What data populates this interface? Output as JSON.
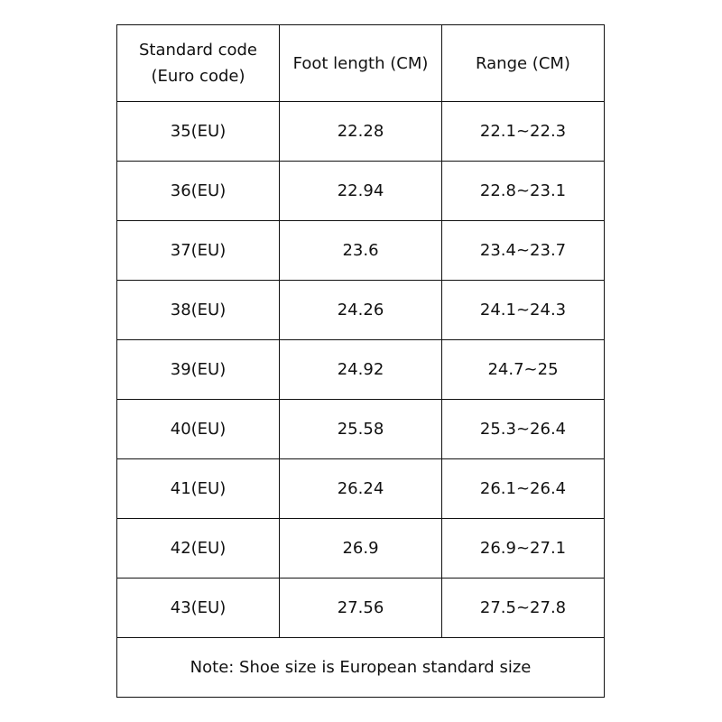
{
  "table": {
    "header": [
      "Standard code (Euro code)",
      "Foot length (CM)",
      "Range (CM)"
    ],
    "rows": [
      [
        "35(EU)",
        "22.28",
        "22.1~22.3"
      ],
      [
        "36(EU)",
        "22.94",
        "22.8~23.1"
      ],
      [
        "37(EU)",
        "23.6",
        "23.4~23.7"
      ],
      [
        "38(EU)",
        "24.26",
        "24.1~24.3"
      ],
      [
        "39(EU)",
        "24.92",
        "24.7~25"
      ],
      [
        "40(EU)",
        "25.58",
        "25.3~26.4"
      ],
      [
        "41(EU)",
        "26.24",
        "26.1~26.4"
      ],
      [
        "42(EU)",
        "26.9",
        "26.9~27.1"
      ],
      [
        "43(EU)",
        "27.56",
        "27.5~27.8"
      ]
    ],
    "note": "Note: Shoe size is European standard size"
  }
}
